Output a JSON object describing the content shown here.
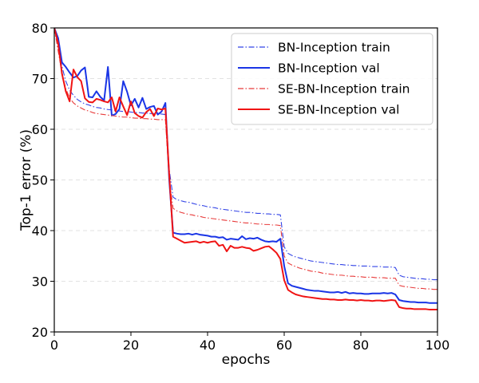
{
  "chart_data": {
    "type": "line",
    "xlabel": "epochs",
    "ylabel": "Top-1 error (%)",
    "xlim": [
      0,
      100
    ],
    "ylim": [
      20,
      80
    ],
    "xticks": [
      "0",
      "20",
      "40",
      "60",
      "80",
      "100"
    ],
    "yticks": [
      "20",
      "30",
      "40",
      "50",
      "60",
      "70",
      "80"
    ],
    "grid": "horizontal dashed",
    "legend_position": "top-right",
    "series": [
      {
        "name": "BN-Inception train",
        "color": "#3344e6",
        "style": "dashdot",
        "x": [
          0,
          1,
          2,
          3,
          4,
          5,
          6,
          7,
          8,
          9,
          10,
          11,
          12,
          13,
          14,
          15,
          16,
          17,
          18,
          19,
          20,
          21,
          22,
          23,
          24,
          25,
          26,
          27,
          28,
          29,
          30,
          31,
          32,
          33,
          34,
          35,
          36,
          37,
          38,
          39,
          40,
          41,
          42,
          43,
          44,
          45,
          46,
          47,
          48,
          49,
          50,
          51,
          52,
          53,
          54,
          55,
          56,
          57,
          58,
          59,
          60,
          61,
          62,
          63,
          64,
          65,
          66,
          67,
          68,
          69,
          70,
          71,
          72,
          73,
          74,
          75,
          76,
          77,
          78,
          79,
          80,
          81,
          82,
          83,
          84,
          85,
          86,
          87,
          88,
          89,
          90,
          91,
          92,
          93,
          94,
          95,
          96,
          97,
          98,
          99,
          100
        ],
        "y": [
          80,
          76,
          72.4,
          69.5,
          67.7,
          66.7,
          65.9,
          65.4,
          65.0,
          64.8,
          64.5,
          64.3,
          64.2,
          64.0,
          63.9,
          63.8,
          63.7,
          63.6,
          63.5,
          63.5,
          63.4,
          63.3,
          63.3,
          63.2,
          63.2,
          63.1,
          63.1,
          63.0,
          63.0,
          62.9,
          52.0,
          46.6,
          46.1,
          45.9,
          45.7,
          45.6,
          45.4,
          45.2,
          45.0,
          44.9,
          44.7,
          44.6,
          44.5,
          44.3,
          44.2,
          44.1,
          44.0,
          43.9,
          43.8,
          43.7,
          43.6,
          43.6,
          43.5,
          43.4,
          43.4,
          43.3,
          43.3,
          43.2,
          43.2,
          43.1,
          36.8,
          35.5,
          35.1,
          34.8,
          34.6,
          34.4,
          34.2,
          34.0,
          33.9,
          33.8,
          33.7,
          33.6,
          33.5,
          33.4,
          33.3,
          33.3,
          33.2,
          33.2,
          33.1,
          33.1,
          33.0,
          33.0,
          33.0,
          32.9,
          32.9,
          32.9,
          32.8,
          32.8,
          32.8,
          32.7,
          31.2,
          30.9,
          30.8,
          30.7,
          30.6,
          30.5,
          30.5,
          30.4,
          30.4,
          30.3,
          30.3
        ]
      },
      {
        "name": "BN-Inception val",
        "color": "#1a35e6",
        "style": "solid",
        "x": [
          0,
          1,
          2,
          3,
          4,
          5,
          6,
          7,
          8,
          9,
          10,
          11,
          12,
          13,
          14,
          15,
          16,
          17,
          18,
          19,
          20,
          21,
          22,
          23,
          24,
          25,
          26,
          27,
          28,
          29,
          30,
          31,
          32,
          33,
          34,
          35,
          36,
          37,
          38,
          39,
          40,
          41,
          42,
          43,
          44,
          45,
          46,
          47,
          48,
          49,
          50,
          51,
          52,
          53,
          54,
          55,
          56,
          57,
          58,
          59,
          60,
          61,
          62,
          63,
          64,
          65,
          66,
          67,
          68,
          69,
          70,
          71,
          72,
          73,
          74,
          75,
          76,
          77,
          78,
          79,
          80,
          81,
          82,
          83,
          84,
          85,
          86,
          87,
          88,
          89,
          90,
          91,
          92,
          93,
          94,
          95,
          96,
          97,
          98,
          99,
          100
        ],
        "y": [
          80,
          78,
          73.2,
          72.3,
          71.2,
          70.2,
          70.5,
          71.6,
          72.2,
          66.4,
          66.3,
          67.5,
          66.4,
          65.7,
          72.3,
          62.7,
          63.0,
          64.0,
          69.5,
          67.4,
          64.7,
          66.0,
          64.3,
          66.2,
          64.0,
          64.4,
          64.6,
          62.9,
          63.5,
          65.2,
          50.0,
          39.6,
          39.4,
          39.3,
          39.3,
          39.4,
          39.2,
          39.4,
          39.2,
          39.1,
          39.0,
          38.8,
          38.8,
          38.6,
          38.7,
          38.2,
          38.4,
          38.3,
          38.2,
          38.9,
          38.3,
          38.5,
          38.4,
          38.6,
          38.2,
          37.9,
          37.8,
          37.9,
          37.8,
          38.4,
          33.0,
          29.6,
          29.1,
          28.9,
          28.7,
          28.5,
          28.3,
          28.2,
          28.1,
          28.1,
          28.0,
          27.9,
          27.8,
          27.8,
          27.9,
          27.7,
          27.9,
          27.6,
          27.7,
          27.6,
          27.6,
          27.5,
          27.5,
          27.6,
          27.6,
          27.6,
          27.7,
          27.6,
          27.7,
          27.4,
          26.3,
          26.1,
          26.0,
          25.9,
          25.9,
          25.8,
          25.8,
          25.8,
          25.7,
          25.7,
          25.7
        ]
      },
      {
        "name": "SE-BN-Inception train",
        "color": "#e83b3b",
        "style": "dashdot",
        "x": [
          0,
          1,
          2,
          3,
          4,
          5,
          6,
          7,
          8,
          9,
          10,
          11,
          12,
          13,
          14,
          15,
          16,
          17,
          18,
          19,
          20,
          21,
          22,
          23,
          24,
          25,
          26,
          27,
          28,
          29,
          30,
          31,
          32,
          33,
          34,
          35,
          36,
          37,
          38,
          39,
          40,
          41,
          42,
          43,
          44,
          45,
          46,
          47,
          48,
          49,
          50,
          51,
          52,
          53,
          54,
          55,
          56,
          57,
          58,
          59,
          60,
          61,
          62,
          63,
          64,
          65,
          66,
          67,
          68,
          69,
          70,
          71,
          72,
          73,
          74,
          75,
          76,
          77,
          78,
          79,
          80,
          81,
          82,
          83,
          84,
          85,
          86,
          87,
          88,
          89,
          90,
          91,
          92,
          93,
          94,
          95,
          96,
          97,
          98,
          99,
          100
        ],
        "y": [
          80,
          75.5,
          71.2,
          68.0,
          66.2,
          65.2,
          64.6,
          64.2,
          63.8,
          63.6,
          63.3,
          63.1,
          63.0,
          62.9,
          62.8,
          62.7,
          62.6,
          62.5,
          62.4,
          62.4,
          62.3,
          62.2,
          62.2,
          62.1,
          62.1,
          62.0,
          62.0,
          61.9,
          61.9,
          61.9,
          50.0,
          44.4,
          43.9,
          43.6,
          43.4,
          43.2,
          43.1,
          42.9,
          42.8,
          42.6,
          42.5,
          42.4,
          42.3,
          42.2,
          42.1,
          42.0,
          41.9,
          41.8,
          41.7,
          41.6,
          41.5,
          41.5,
          41.4,
          41.3,
          41.3,
          41.2,
          41.2,
          41.1,
          41.1,
          41.0,
          35.0,
          33.6,
          33.2,
          32.9,
          32.6,
          32.4,
          32.2,
          32.0,
          31.9,
          31.8,
          31.6,
          31.5,
          31.4,
          31.3,
          31.2,
          31.2,
          31.1,
          31.0,
          31.0,
          30.9,
          30.9,
          30.8,
          30.8,
          30.8,
          30.7,
          30.7,
          30.7,
          30.6,
          30.6,
          30.6,
          29.2,
          29.0,
          28.9,
          28.8,
          28.7,
          28.6,
          28.6,
          28.5,
          28.5,
          28.4,
          28.4
        ]
      },
      {
        "name": "SE-BN-Inception val",
        "color": "#f01414",
        "style": "solid",
        "x": [
          0,
          1,
          2,
          3,
          4,
          5,
          6,
          7,
          8,
          9,
          10,
          11,
          12,
          13,
          14,
          15,
          16,
          17,
          18,
          19,
          20,
          21,
          22,
          23,
          24,
          25,
          26,
          27,
          28,
          29,
          30,
          31,
          32,
          33,
          34,
          35,
          36,
          37,
          38,
          39,
          40,
          41,
          42,
          43,
          44,
          45,
          46,
          47,
          48,
          49,
          50,
          51,
          52,
          53,
          54,
          55,
          56,
          57,
          58,
          59,
          60,
          61,
          62,
          63,
          64,
          65,
          66,
          67,
          68,
          69,
          70,
          71,
          72,
          73,
          74,
          75,
          76,
          77,
          78,
          79,
          80,
          81,
          82,
          83,
          84,
          85,
          86,
          87,
          88,
          89,
          90,
          91,
          92,
          93,
          94,
          95,
          96,
          97,
          98,
          99,
          100
        ],
        "y": [
          80,
          77,
          71.0,
          67.5,
          65.5,
          71.8,
          70.3,
          69.5,
          66.1,
          65.4,
          65.3,
          66.0,
          65.8,
          65.5,
          65.3,
          66.3,
          63.5,
          66.3,
          64.5,
          62.8,
          65.5,
          63.2,
          62.6,
          62.3,
          63.4,
          64.0,
          62.6,
          64.1,
          63.9,
          64.1,
          51.0,
          38.8,
          38.4,
          38.0,
          37.6,
          37.7,
          37.8,
          37.9,
          37.6,
          37.8,
          37.6,
          37.8,
          37.9,
          37.0,
          37.2,
          35.9,
          37.0,
          36.6,
          36.6,
          36.8,
          36.6,
          36.5,
          36.0,
          36.2,
          36.5,
          36.8,
          36.9,
          36.3,
          35.6,
          34.4,
          30.2,
          28.3,
          27.8,
          27.4,
          27.2,
          27.0,
          26.9,
          26.8,
          26.7,
          26.6,
          26.5,
          26.5,
          26.4,
          26.4,
          26.3,
          26.3,
          26.4,
          26.3,
          26.3,
          26.2,
          26.3,
          26.2,
          26.2,
          26.1,
          26.2,
          26.2,
          26.1,
          26.2,
          26.3,
          26.2,
          24.9,
          24.7,
          24.6,
          24.6,
          24.5,
          24.5,
          24.5,
          24.5,
          24.4,
          24.4,
          24.4
        ]
      }
    ]
  }
}
